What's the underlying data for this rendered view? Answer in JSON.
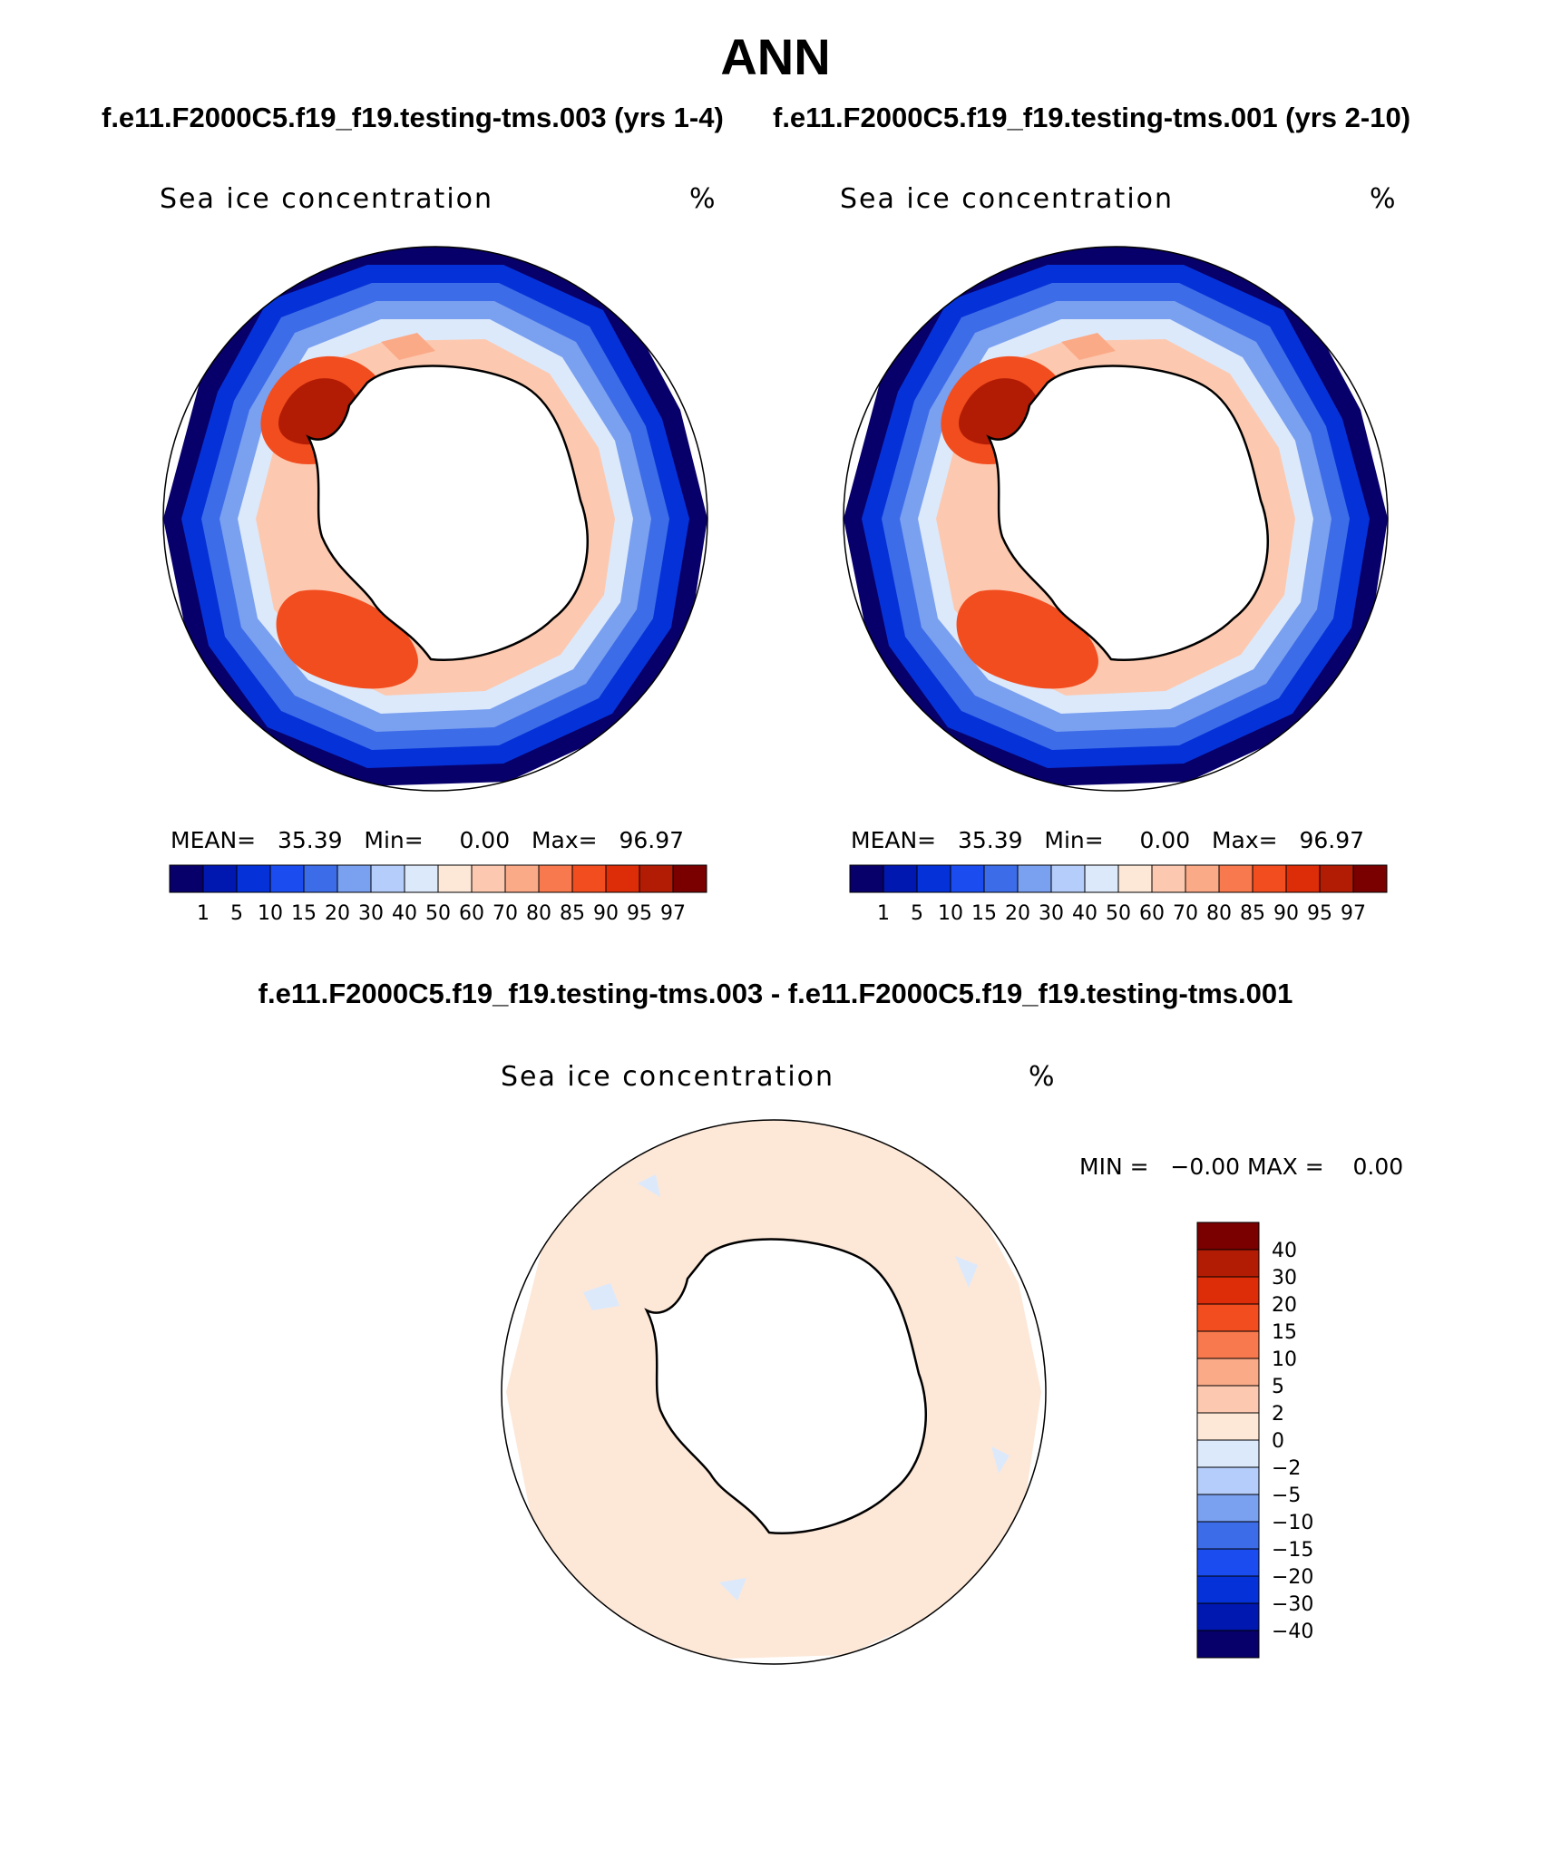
{
  "title": "ANN",
  "subtitles": {
    "left": "f.e11.F2000C5.f19_f19.testing-tms.003 (yrs 1-4)",
    "right": "f.e11.F2000C5.f19_f19.testing-tms.001 (yrs 2-10)"
  },
  "panels": [
    {
      "variable": "Sea ice concentration",
      "units": "%",
      "mean_label": "MEAN=",
      "mean": "35.39",
      "min_label": "Min=",
      "min": "0.00",
      "max_label": "Max=",
      "max": "96.97"
    },
    {
      "variable": "Sea ice concentration",
      "units": "%",
      "mean_label": "MEAN=",
      "mean": "35.39",
      "min_label": "Min=",
      "min": "0.00",
      "max_label": "Max=",
      "max": "96.97"
    }
  ],
  "main_colorbar": {
    "colors": [
      "#08006a",
      "#0018b0",
      "#0532d8",
      "#1b4cf0",
      "#3d6ce8",
      "#7aa0f0",
      "#b4cdfa",
      "#dce9fb",
      "#fde8d8",
      "#fcc9b0",
      "#fbaa88",
      "#f7794d",
      "#f24d1f",
      "#dc2d08",
      "#b31c04",
      "#7a0000"
    ],
    "labels": [
      "1",
      "5",
      "10",
      "15",
      "20",
      "30",
      "40",
      "50",
      "60",
      "70",
      "80",
      "85",
      "90",
      "95",
      "97"
    ]
  },
  "difference": {
    "title": "f.e11.F2000C5.f19_f19.testing-tms.003 - f.e11.F2000C5.f19_f19.testing-tms.001",
    "variable": "Sea ice concentration",
    "units": "%",
    "min_label": "MIN =",
    "min": "−0.00",
    "max_label": "MAX =",
    "max": "0.00",
    "colors_top_to_bottom": [
      "#7a0000",
      "#b31c04",
      "#dc2d08",
      "#f24d1f",
      "#f7794d",
      "#fbaa88",
      "#fcc9b0",
      "#fde8d8",
      "#dce9fb",
      "#b4cdfa",
      "#7aa0f0",
      "#3d6ce8",
      "#1b4cf0",
      "#0532d8",
      "#0018b0",
      "#08006a"
    ],
    "labels_top_to_bottom": [
      "40",
      "30",
      "20",
      "15",
      "10",
      "5",
      "2",
      "0",
      "−2",
      "−5",
      "−10",
      "−15",
      "−20",
      "−30",
      "−40"
    ]
  }
}
